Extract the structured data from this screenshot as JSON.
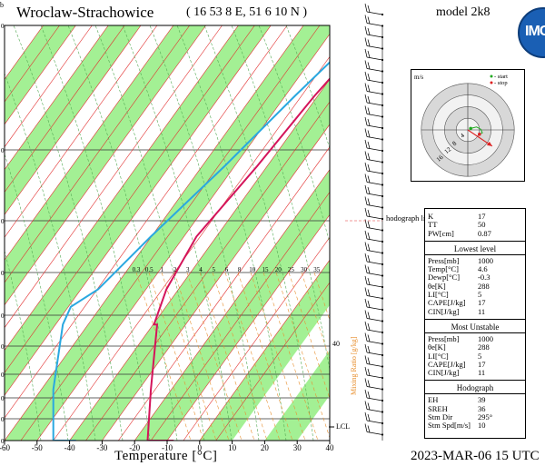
{
  "header": {
    "corner_label": "b",
    "station": "Wroclaw-Strachowice",
    "coordinates": "( 16 53 8 E, 51 6 10 N )",
    "model": "model 2k8",
    "logo_text": "IMGW"
  },
  "footer": {
    "xlabel": "Temperature [°C]",
    "datetime": "2023-MAR-06   15 UTC"
  },
  "chart_data": [
    {
      "type": "line",
      "name": "skew-T log-p diagram",
      "xlabel": "Temperature [°C]",
      "ylabel": "",
      "x_ticks": [
        -60,
        -50,
        -40,
        -30,
        -20,
        -10,
        0,
        10,
        20,
        30,
        40
      ],
      "xlim": [
        -60,
        40
      ],
      "pressure_ticks_visible": [
        "0",
        "0",
        "0",
        "0",
        "0",
        "0",
        "0",
        "0",
        "0",
        "0"
      ],
      "mixing_ratio_label": "Mixing Ratio [g/kg]",
      "mixing_ratio_ticks": [
        "0.3",
        "0.5",
        "1",
        "2",
        "3",
        "4",
        "5",
        "6",
        "8",
        "10",
        "15",
        "20",
        "25",
        "30",
        "35"
      ],
      "height_marker": "40",
      "lcl_label": "LCL",
      "hodograph_limit_label": "hodograph limit",
      "series": [
        {
          "name": "",
          "color": "#d4145a",
          "profile": [
            [
              -8,
              28
            ],
            [
              -16,
              28
            ],
            [
              -22,
              86
            ],
            [
              -29,
              160
            ],
            [
              -30,
              160
            ],
            [
              -31,
              200
            ],
            [
              -29,
              260
            ],
            [
              -20,
              340
            ],
            [
              -12,
              420
            ],
            [
              -6,
              470
            ],
            [
              0,
              500
            ]
          ]
        },
        {
          "name": "",
          "color": "#2aa8e0",
          "profile": [
            [
              -38,
              28
            ],
            [
              -45,
              28
            ],
            [
              -52,
              86
            ],
            [
              -58,
              160
            ],
            [
              -58,
              180
            ],
            [
              -52,
              200
            ],
            [
              -43,
              260
            ],
            [
              -30,
              340
            ],
            [
              -18,
              420
            ],
            [
              -10,
              470
            ],
            [
              -3,
              500
            ]
          ]
        }
      ]
    },
    {
      "type": "scatter",
      "name": "hodograph",
      "unit_label": "m/s",
      "ring_labels": [
        "4",
        "8",
        "12",
        "16"
      ],
      "legend": [
        {
          "label": "- start",
          "color": "#22aa22"
        },
        {
          "label": "- stop",
          "color": "#dd2222"
        }
      ],
      "points": [
        [
          1,
          0.5
        ],
        [
          3,
          1
        ],
        [
          4.5,
          0.2
        ],
        [
          5,
          -1
        ],
        [
          4,
          -1.5
        ]
      ],
      "storm_motion": [
        6,
        -4
      ]
    }
  ],
  "indices": {
    "top": [
      {
        "label": "K",
        "value": "17"
      },
      {
        "label": "TT",
        "value": "50"
      },
      {
        "label": "PW[cm]",
        "value": "0.87"
      }
    ],
    "lowest_level_title": "Lowest level",
    "lowest_level": [
      {
        "label": "Press[mb]",
        "value": "1000"
      },
      {
        "label": "Temp[°C]",
        "value": "4.6"
      },
      {
        "label": "Dewp[°C]",
        "value": "-0.3"
      },
      {
        "label": "θe[K]",
        "value": "288"
      },
      {
        "label": "LI[°C]",
        "value": "5"
      },
      {
        "label": "CAPE[J/kg]",
        "value": "17"
      },
      {
        "label": "CIN[J/kg]",
        "value": "11"
      }
    ],
    "most_unstable_title": "Most Unstable",
    "most_unstable": [
      {
        "label": "Press[mb]",
        "value": "1000"
      },
      {
        "label": "θe[K]",
        "value": "288"
      },
      {
        "label": "LI[°C]",
        "value": "5"
      },
      {
        "label": "CAPE[J/kg]",
        "value": "17"
      },
      {
        "label": "CIN[J/kg]",
        "value": "11"
      }
    ],
    "hodograph_title": "Hodograph",
    "hodograph": [
      {
        "label": "EH",
        "value": "39"
      },
      {
        "label": "SREH",
        "value": "36"
      },
      {
        "label": "Stm Dir",
        "value": "295°"
      },
      {
        "label": "Stm Spd[m/s]",
        "value": "10"
      }
    ]
  },
  "colors": {
    "green_band": "#99ee88",
    "temperature": "#d4145a",
    "dewpoint": "#2aa8e0",
    "isotherm": "#e23030",
    "mixing_ratio": "#e89030",
    "dry_adiabat": "#55aa55"
  }
}
